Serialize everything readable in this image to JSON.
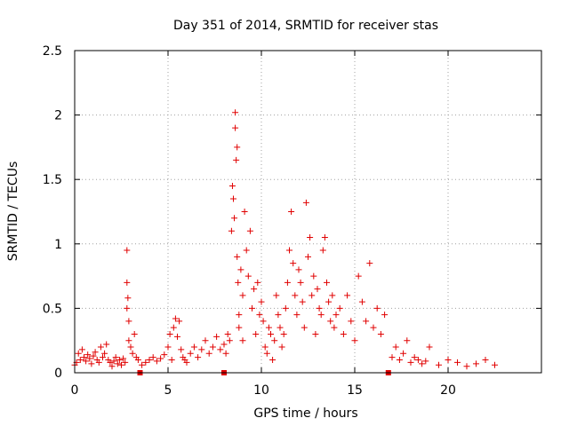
{
  "chart_data": {
    "type": "scatter",
    "title": "Day 351 of 2014, SRMTID for receiver stas",
    "xlabel": "GPS time / hours",
    "ylabel": "SRMTID / TECUs",
    "xlim": [
      0,
      25
    ],
    "ylim": [
      0,
      2.5
    ],
    "xticks": [
      0,
      5,
      10,
      15,
      20
    ],
    "xtick_labels": [
      "0",
      "5",
      "10",
      "15",
      "20"
    ],
    "yticks": [
      0,
      0.5,
      1,
      1.5,
      2,
      2.5
    ],
    "ytick_labels": [
      "0",
      "0.5",
      "1",
      "1.5",
      "2",
      "2.5"
    ],
    "grid": true,
    "marker": "+",
    "color": "#e00000",
    "series": [
      {
        "name": "stas",
        "x": [
          0.0,
          0.1,
          0.2,
          0.3,
          0.4,
          0.5,
          0.6,
          0.7,
          0.8,
          0.9,
          1.0,
          1.1,
          1.2,
          1.3,
          1.4,
          1.5,
          1.6,
          1.7,
          1.8,
          1.9,
          2.0,
          2.1,
          2.2,
          2.3,
          2.4,
          2.5,
          2.6,
          2.7,
          2.8,
          2.8,
          2.8,
          2.85,
          2.9,
          2.9,
          3.0,
          3.1,
          3.2,
          3.3,
          3.4,
          3.6,
          3.8,
          4.0,
          4.2,
          4.4,
          4.6,
          4.8,
          5.0,
          5.1,
          5.2,
          5.3,
          5.4,
          5.5,
          5.6,
          5.7,
          5.8,
          5.9,
          6.0,
          6.2,
          6.4,
          6.6,
          6.8,
          7.0,
          7.2,
          7.4,
          7.6,
          7.8,
          8.0,
          8.1,
          8.2,
          8.3,
          8.4,
          8.45,
          8.5,
          8.55,
          8.6,
          8.6,
          8.65,
          8.7,
          8.7,
          8.75,
          8.8,
          8.8,
          8.9,
          9.0,
          9.0,
          9.1,
          9.2,
          9.3,
          9.4,
          9.5,
          9.6,
          9.7,
          9.8,
          9.9,
          10.0,
          10.1,
          10.2,
          10.3,
          10.4,
          10.5,
          10.6,
          10.7,
          10.8,
          10.9,
          11.0,
          11.1,
          11.2,
          11.3,
          11.4,
          11.5,
          11.6,
          11.7,
          11.8,
          11.9,
          12.0,
          12.1,
          12.2,
          12.3,
          12.4,
          12.5,
          12.6,
          12.7,
          12.8,
          12.9,
          13.0,
          13.1,
          13.2,
          13.3,
          13.4,
          13.5,
          13.6,
          13.7,
          13.8,
          13.9,
          14.0,
          14.2,
          14.4,
          14.6,
          14.8,
          15.0,
          15.2,
          15.4,
          15.6,
          15.8,
          16.0,
          16.2,
          16.4,
          16.6,
          17.0,
          17.2,
          17.4,
          17.6,
          17.8,
          18.0,
          18.2,
          18.4,
          18.6,
          18.8,
          19.0,
          19.5,
          20.0,
          20.5,
          21.0,
          21.5,
          22.0,
          22.5
        ],
        "y": [
          0.06,
          0.08,
          0.15,
          0.1,
          0.18,
          0.12,
          0.09,
          0.14,
          0.11,
          0.07,
          0.13,
          0.16,
          0.1,
          0.08,
          0.2,
          0.12,
          0.15,
          0.22,
          0.1,
          0.08,
          0.05,
          0.09,
          0.12,
          0.07,
          0.1,
          0.06,
          0.11,
          0.08,
          0.95,
          0.7,
          0.5,
          0.58,
          0.4,
          0.25,
          0.2,
          0.15,
          0.3,
          0.12,
          0.1,
          0.06,
          0.08,
          0.1,
          0.12,
          0.09,
          0.11,
          0.14,
          0.2,
          0.3,
          0.1,
          0.35,
          0.42,
          0.28,
          0.4,
          0.18,
          0.12,
          0.1,
          0.08,
          0.15,
          0.2,
          0.12,
          0.18,
          0.25,
          0.15,
          0.2,
          0.28,
          0.18,
          0.22,
          0.15,
          0.3,
          0.25,
          1.1,
          1.45,
          1.35,
          1.2,
          2.02,
          1.9,
          1.65,
          1.75,
          0.9,
          0.7,
          0.45,
          0.35,
          0.8,
          0.6,
          0.25,
          1.25,
          0.95,
          0.75,
          1.1,
          0.5,
          0.65,
          0.3,
          0.7,
          0.45,
          0.55,
          0.4,
          0.2,
          0.15,
          0.35,
          0.3,
          0.1,
          0.25,
          0.6,
          0.45,
          0.35,
          0.2,
          0.3,
          0.5,
          0.7,
          0.95,
          1.25,
          0.85,
          0.6,
          0.45,
          0.8,
          0.7,
          0.55,
          0.35,
          1.32,
          0.9,
          1.05,
          0.6,
          0.75,
          0.3,
          0.65,
          0.5,
          0.45,
          0.95,
          1.05,
          0.7,
          0.55,
          0.4,
          0.6,
          0.35,
          0.45,
          0.5,
          0.3,
          0.6,
          0.4,
          0.25,
          0.75,
          0.55,
          0.4,
          0.85,
          0.35,
          0.5,
          0.3,
          0.45,
          0.12,
          0.2,
          0.1,
          0.15,
          0.25,
          0.08,
          0.12,
          0.1,
          0.07,
          0.09,
          0.2,
          0.06,
          0.1,
          0.08,
          0.05,
          0.07,
          0.1,
          0.06
        ]
      }
    ],
    "gap_markers_x": [
      3.5,
      8.0,
      16.8
    ]
  }
}
